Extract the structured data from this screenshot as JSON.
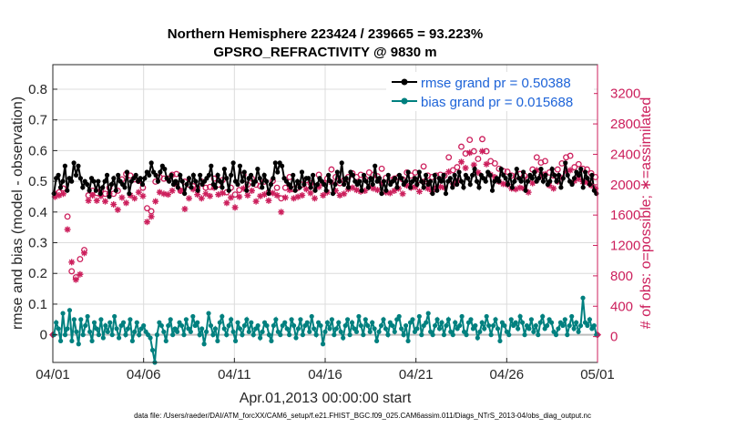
{
  "chart_data": {
    "type": "line",
    "title": "Northern Hemisphere 223424 / 239665 = 93.223%",
    "subtitle": "GPSRO_REFRACTIVITY @ 9830 m",
    "xlabel": "Apr.01,2013 00:00:00 start",
    "ylabel": "rmse and bias (model - observation)",
    "ylabel_right": "# of obs: o=possible; ∗=assimilated",
    "xlim": [
      0,
      30
    ],
    "ylim": [
      -0.09,
      0.88
    ],
    "ylim_right": [
      -340,
      3580
    ],
    "x_tick_values": [
      0,
      5,
      10,
      15,
      20,
      25,
      30
    ],
    "x_ticks": [
      "04/01",
      "04/06",
      "04/11",
      "04/16",
      "04/21",
      "04/26",
      "05/01"
    ],
    "y_ticks": [
      "0",
      "0.1",
      "0.2",
      "0.3",
      "0.4",
      "0.5",
      "0.6",
      "0.7",
      "0.8"
    ],
    "y_tick_values": [
      0,
      0.1,
      0.2,
      0.3,
      0.4,
      0.5,
      0.6,
      0.7,
      0.8
    ],
    "y_ticks_right": [
      "0",
      "400",
      "800",
      "1200",
      "1600",
      "2000",
      "2400",
      "2800",
      "3200"
    ],
    "y_tick_values_right": [
      0,
      400,
      800,
      1200,
      1600,
      2000,
      2400,
      2800,
      3200
    ],
    "grid": true,
    "legend_position": "top-right",
    "series": [
      {
        "name": "rmse grand pr = 0.50388",
        "color": "#000000",
        "marker": "filled-circle",
        "values": [
          0.46,
          0.51,
          0.52,
          0.48,
          0.5,
          0.55,
          0.47,
          0.51,
          0.5,
          0.56,
          0.52,
          0.55,
          0.51,
          0.48,
          0.5,
          0.49,
          0.47,
          0.51,
          0.5,
          0.47,
          0.5,
          0.46,
          0.48,
          0.5,
          0.52,
          0.45,
          0.49,
          0.51,
          0.47,
          0.52,
          0.5,
          0.49,
          0.48,
          0.53,
          0.46,
          0.5,
          0.51,
          0.52,
          0.5,
          0.51,
          0.49,
          0.51,
          0.53,
          0.52,
          0.56,
          0.53,
          0.52,
          0.5,
          0.53,
          0.55,
          0.54,
          0.51,
          0.5,
          0.52,
          0.49,
          0.5,
          0.48,
          0.52,
          0.5,
          0.46,
          0.49,
          0.51,
          0.48,
          0.52,
          0.5,
          0.47,
          0.52,
          0.49,
          0.5,
          0.51,
          0.52,
          0.55,
          0.49,
          0.48,
          0.52,
          0.5,
          0.48,
          0.54,
          0.51,
          0.47,
          0.52,
          0.56,
          0.5,
          0.49,
          0.55,
          0.5,
          0.53,
          0.47,
          0.51,
          0.52,
          0.49,
          0.5,
          0.54,
          0.51,
          0.48,
          0.52,
          0.5,
          0.46,
          0.49,
          0.51,
          0.56,
          0.53,
          0.56,
          0.55,
          0.51,
          0.5,
          0.49,
          0.48,
          0.52,
          0.47,
          0.5,
          0.48,
          0.53,
          0.49,
          0.51,
          0.51,
          0.48,
          0.52,
          0.47,
          0.49,
          0.51,
          0.5,
          0.49,
          0.47,
          0.52,
          0.5,
          0.46,
          0.49,
          0.53,
          0.5,
          0.56,
          0.49,
          0.51,
          0.48,
          0.53,
          0.52,
          0.5,
          0.49,
          0.5,
          0.47,
          0.52,
          0.5,
          0.48,
          0.51,
          0.49,
          0.55,
          0.5,
          0.51,
          0.46,
          0.5,
          0.47,
          0.52,
          0.49,
          0.5,
          0.51,
          0.48,
          0.52,
          0.51,
          0.49,
          0.5,
          0.53,
          0.48,
          0.5,
          0.51,
          0.49,
          0.53,
          0.5,
          0.48,
          0.52,
          0.49,
          0.5,
          0.46,
          0.52,
          0.47,
          0.51,
          0.5,
          0.52,
          0.46,
          0.5,
          0.51,
          0.48,
          0.52,
          0.49,
          0.53,
          0.5,
          0.48,
          0.52,
          0.51,
          0.49,
          0.52,
          0.54,
          0.5,
          0.48,
          0.52,
          0.51,
          0.5,
          0.53,
          0.52,
          0.47,
          0.5,
          0.51,
          0.5,
          0.54,
          0.52,
          0.51,
          0.49,
          0.52,
          0.48,
          0.5,
          0.54,
          0.51,
          0.5,
          0.53,
          0.47,
          0.5,
          0.52,
          0.51,
          0.53,
          0.5,
          0.51,
          0.54,
          0.5,
          0.52,
          0.49,
          0.5,
          0.54,
          0.52,
          0.5,
          0.52,
          0.48,
          0.51,
          0.56,
          0.52,
          0.5,
          0.49,
          0.51,
          0.53,
          0.52,
          0.54,
          0.48,
          0.53,
          0.51,
          0.49,
          0.52,
          0.47,
          0.46
        ]
      },
      {
        "name": "bias grand pr = 0.015688",
        "color": "#00807f",
        "marker": "filled-circle",
        "values": [
          0.0,
          0.04,
          0.02,
          -0.02,
          0.07,
          0.0,
          0.02,
          0.08,
          -0.02,
          0.05,
          0.01,
          -0.03,
          0.05,
          0.0,
          0.03,
          0.06,
          0.01,
          -0.02,
          0.04,
          0.02,
          0.0,
          0.05,
          -0.01,
          0.03,
          0.01,
          0.04,
          0.0,
          0.06,
          0.02,
          -0.01,
          0.03,
          0.04,
          0.0,
          0.02,
          0.05,
          -0.02,
          0.01,
          0.04,
          0.0,
          0.02,
          0.03,
          0.01,
          0.0,
          -0.01,
          -0.05,
          -0.09,
          0.0,
          0.04,
          0.03,
          0.01,
          -0.02,
          0.03,
          0.05,
          0.0,
          0.02,
          0.01,
          0.04,
          0.03,
          0.0,
          0.05,
          0.02,
          0.01,
          0.06,
          0.03,
          0.04,
          0.0,
          0.02,
          -0.03,
          0.01,
          0.07,
          0.03,
          0.0,
          0.02,
          -0.02,
          0.04,
          0.06,
          0.02,
          0.0,
          0.03,
          0.05,
          0.01,
          -0.02,
          0.04,
          0.02,
          0.0,
          0.03,
          0.05,
          0.01,
          0.04,
          0.0,
          0.02,
          0.03,
          -0.01,
          0.01,
          0.04,
          0.03,
          0.0,
          -0.02,
          0.03,
          0.05,
          0.01,
          0.0,
          0.03,
          0.04,
          0.02,
          0.0,
          0.05,
          0.03,
          -0.01,
          0.02,
          0.05,
          0.0,
          0.03,
          0.04,
          0.01,
          0.06,
          0.02,
          0.0,
          0.04,
          0.03,
          -0.03,
          0.01,
          0.04,
          0.02,
          0.05,
          0.0,
          0.02,
          0.04,
          0.01,
          -0.01,
          0.03,
          0.05,
          0.0,
          0.04,
          0.02,
          0.01,
          0.06,
          0.03,
          0.0,
          0.05,
          0.03,
          0.01,
          0.04,
          0.02,
          -0.02,
          0.01,
          0.03,
          0.05,
          0.02,
          0.0,
          0.04,
          0.03,
          0.01,
          0.05,
          0.06,
          0.02,
          0.0,
          0.03,
          -0.02,
          0.04,
          0.05,
          0.01,
          0.02,
          0.06,
          0.0,
          0.03,
          0.04,
          0.07,
          0.01,
          0.0,
          0.03,
          0.05,
          0.02,
          0.04,
          0.0,
          0.03,
          0.05,
          0.01,
          0.0,
          0.04,
          0.02,
          0.03,
          0.06,
          0.01,
          0.0,
          0.04,
          0.05,
          0.02,
          0.03,
          -0.01,
          0.01,
          0.04,
          0.02,
          0.06,
          0.03,
          0.0,
          0.03,
          0.05,
          0.02,
          -0.02,
          0.04,
          0.03,
          0.01,
          0.0,
          0.05,
          0.03,
          0.04,
          0.02,
          0.06,
          0.04,
          0.0,
          0.03,
          0.02,
          0.05,
          0.01,
          0.03,
          0.0,
          0.04,
          0.06,
          0.02,
          0.03,
          0.05,
          0.04,
          0.01,
          0.0,
          0.02,
          0.04,
          0.03,
          0.05,
          0.0,
          0.03,
          0.06,
          0.02,
          0.04,
          0.01,
          0.03,
          0.12,
          0.04,
          0.03,
          0.05,
          0.02,
          0.03,
          0.0
        ]
      }
    ],
    "obs_series": [
      {
        "name": "possible",
        "axis": "right",
        "color": "#cc1f5c",
        "marker": "open-circle",
        "values": [
          1880,
          1900,
          1950,
          1580,
          860,
          780,
          1020,
          1140,
          1860,
          1920,
          1890,
          1930,
          1880,
          1960,
          1880,
          1920,
          2070,
          2140,
          2120,
          2070,
          2050,
          1960,
          1690,
          1650,
          2040,
          2100,
          2080,
          2080,
          2130,
          2140,
          1920,
          2040,
          2000,
          1980,
          1960,
          2040,
          1960,
          1970,
          2080,
          2000,
          2060,
          1900,
          1960,
          1870,
          1930,
          2130,
          2000,
          2080,
          2000,
          1980,
          2040,
          1900,
          2050,
          1960,
          1820,
          1960,
          2100,
          1940,
          1960,
          2000,
          2060,
          2020,
          1980,
          2130,
          2020,
          2080,
          2200,
          2100,
          2020,
          2060,
          2100,
          2150,
          2100,
          2130,
          2080,
          2160,
          2130,
          2110,
          2210,
          2090,
          2060,
          2080,
          2100,
          2070,
          2160,
          2120,
          2160,
          2060,
          2240,
          2120,
          2100,
          2120,
          2130,
          2120,
          2360,
          2190,
          2230,
          2500,
          2410,
          2590,
          2440,
          2340,
          2600,
          2440,
          2310,
          2280,
          2210,
          2180,
          2170,
          2120,
          2110,
          2140,
          2120,
          2070,
          2200,
          2360,
          2290,
          2310,
          2160,
          2120,
          2200,
          2280,
          2360,
          2380,
          2230,
          2270,
          2210,
          2200,
          2150,
          2100
        ]
      },
      {
        "name": "assimilated",
        "axis": "right",
        "color": "#cc1f5c",
        "marker": "asterisk",
        "values": [
          1840,
          1860,
          1880,
          1410,
          980,
          750,
          820,
          1100,
          1790,
          1860,
          1790,
          1850,
          1780,
          1880,
          1740,
          1670,
          1830,
          1760,
          1860,
          1820,
          1900,
          1850,
          1510,
          1580,
          1780,
          1900,
          1880,
          1870,
          1920,
          2000,
          1920,
          1680,
          1820,
          1940,
          1870,
          1820,
          1880,
          1850,
          1960,
          1870,
          1890,
          1760,
          1830,
          1700,
          1840,
          1950,
          1860,
          1920,
          1780,
          1850,
          1870,
          1790,
          1890,
          1860,
          1640,
          1830,
          1930,
          1820,
          1840,
          1860,
          1940,
          1890,
          1820,
          1970,
          1860,
          1900,
          2030,
          1920,
          1860,
          1880,
          1940,
          1960,
          1930,
          1910,
          1920,
          1970,
          1950,
          1930,
          2020,
          1900,
          1890,
          1920,
          1950,
          1880,
          1990,
          1960,
          1970,
          1910,
          2040,
          1950,
          1910,
          1960,
          1970,
          1960,
          2170,
          2010,
          2050,
          2300,
          2220,
          2420,
          2260,
          2160,
          2440,
          2270,
          2130,
          2100,
          2040,
          2010,
          2000,
          1950,
          1940,
          1960,
          1950,
          1900,
          2020,
          2190,
          2110,
          2140,
          1990,
          1950,
          2040,
          2090,
          2170,
          2190,
          2050,
          2080,
          2040,
          2030,
          1990,
          1950
        ]
      }
    ]
  },
  "footer": {
    "data_file": "data file: /Users/raeder/DAI/ATM_forcXX/CAM6_setup/f.e21.FHIST_BGC.f09_025.CAM6assim.011/Diags_NTrS_2013-04/obs_diag_output.nc"
  },
  "colors": {
    "rmse": "#000000",
    "bias": "#00807f",
    "obs": "#cc1f5c",
    "legend_text": "#1d63d8",
    "zero_line": "#bdbdbd"
  }
}
